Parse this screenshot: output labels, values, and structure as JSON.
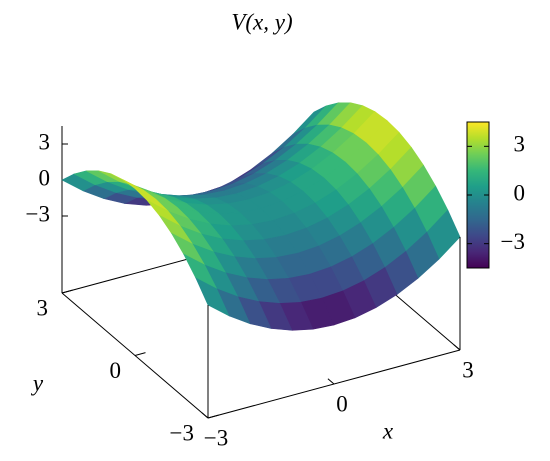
{
  "chart_data": {
    "type": "surface",
    "title": "V(x, y)",
    "x_label": "x",
    "y_label": "y",
    "colormap": "viridis",
    "x": [
      -3,
      -2.5,
      -2,
      -1.5,
      -1,
      -0.5,
      0,
      0.5,
      1,
      1.5,
      2,
      2.5,
      3
    ],
    "y": [
      -3,
      -2.5,
      -2,
      -1.5,
      -1,
      -0.5,
      0,
      0.5,
      1,
      1.5,
      2,
      2.5,
      3
    ],
    "z": [
      [
        0,
        -1.375,
        -2.5,
        -3.375,
        -4,
        -4.375,
        -4.5,
        -4.375,
        -4,
        -3.375,
        -2.5,
        -1.375,
        0
      ],
      [
        1.375,
        0,
        -1.125,
        -2,
        -2.625,
        -3,
        -3.125,
        -3,
        -2.625,
        -2,
        -1.125,
        0,
        1.375
      ],
      [
        2.5,
        1.125,
        0,
        -0.875,
        -1.5,
        -1.875,
        -2,
        -1.875,
        -1.5,
        -0.875,
        0,
        1.125,
        2.5
      ],
      [
        3.375,
        2,
        0.875,
        0,
        -0.625,
        -1,
        -1.125,
        -1,
        -0.625,
        0,
        0.875,
        2,
        3.375
      ],
      [
        4,
        2.625,
        1.5,
        0.625,
        0,
        -0.375,
        -0.5,
        -0.375,
        0,
        0.625,
        1.5,
        2.625,
        4
      ],
      [
        4.375,
        3,
        1.875,
        1,
        0.375,
        0,
        -0.125,
        0,
        0.375,
        1,
        1.875,
        3,
        4.375
      ],
      [
        4.5,
        3.125,
        2,
        1.125,
        0.5,
        0.125,
        0,
        0.125,
        0.5,
        1.125,
        2,
        3.125,
        4.5
      ],
      [
        4.375,
        3,
        1.875,
        1,
        0.375,
        0,
        -0.125,
        0,
        0.375,
        1,
        1.875,
        3,
        4.375
      ],
      [
        4,
        2.625,
        1.5,
        0.625,
        0,
        -0.375,
        -0.5,
        -0.375,
        0,
        0.625,
        1.5,
        2.625,
        4
      ],
      [
        3.375,
        2,
        0.875,
        0,
        -0.625,
        -1,
        -1.125,
        -1,
        -0.625,
        0,
        0.875,
        2,
        3.375
      ],
      [
        2.5,
        1.125,
        0,
        -0.875,
        -1.5,
        -1.875,
        -2,
        -1.875,
        -1.5,
        -0.875,
        0,
        1.125,
        2.5
      ],
      [
        1.375,
        0,
        -1.125,
        -2,
        -2.625,
        -3,
        -3.125,
        -3,
        -2.625,
        -2,
        -1.125,
        0,
        1.375
      ],
      [
        0,
        -1.375,
        -2.5,
        -3.375,
        -4,
        -4.375,
        -4.5,
        -4.375,
        -4,
        -3.375,
        -2.5,
        -1.375,
        0
      ]
    ],
    "xlim": [
      -3,
      3
    ],
    "ylim": [
      -3,
      3
    ],
    "zlim": [
      -4.5,
      4.5
    ],
    "clim": [
      -4.5,
      4.5
    ],
    "xticks": [
      {
        "value": -3,
        "label": "−3"
      },
      0,
      3
    ],
    "yticks": [
      {
        "value": -3,
        "label": "−3"
      },
      0,
      3
    ],
    "zticks": [
      {
        "value": -3,
        "label": "−3"
      },
      0,
      3
    ],
    "cbticks": [
      {
        "value": -3,
        "label": "−3"
      },
      0,
      3
    ]
  }
}
